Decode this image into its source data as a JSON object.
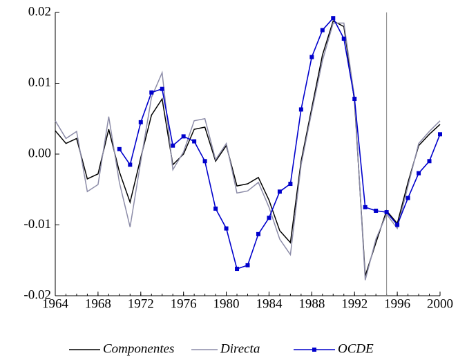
{
  "chart_data": {
    "type": "line",
    "x": [
      1964,
      1965,
      1966,
      1967,
      1968,
      1969,
      1970,
      1971,
      1972,
      1973,
      1974,
      1975,
      1976,
      1977,
      1978,
      1979,
      1980,
      1981,
      1982,
      1983,
      1984,
      1985,
      1986,
      1987,
      1988,
      1989,
      1990,
      1991,
      1992,
      1993,
      1994,
      1995,
      1996,
      1997,
      1998,
      1999,
      2000
    ],
    "xlim": [
      1964,
      2000
    ],
    "xticks": [
      1964,
      1968,
      1972,
      1976,
      1980,
      1984,
      1988,
      1992,
      1996,
      2000
    ],
    "ylim": [
      -0.02,
      0.02
    ],
    "yticks": [
      0.02,
      0.01,
      {
        "value": 0,
        "label": "0.00"
      },
      -0.01,
      -0.02
    ],
    "vline": 1995,
    "series": [
      {
        "name": "Componentes",
        "color": "#000000",
        "markers": false,
        "values": [
          0.0033,
          0.0015,
          0.0022,
          -0.0035,
          -0.0028,
          0.0035,
          -0.0025,
          -0.0068,
          -0.0005,
          0.0055,
          0.0078,
          -0.0015,
          0.0,
          0.0035,
          0.0038,
          -0.001,
          0.0012,
          -0.0045,
          -0.0042,
          -0.0033,
          -0.0065,
          -0.0108,
          -0.0125,
          -0.001,
          0.0065,
          0.014,
          0.0188,
          0.018,
          0.0075,
          -0.0172,
          -0.0125,
          -0.008,
          -0.0098,
          -0.004,
          0.0012,
          0.0028,
          0.0042
        ]
      },
      {
        "name": "Directa",
        "color": "#8c8ca8",
        "markers": false,
        "values": [
          0.0047,
          0.0022,
          0.0032,
          -0.0053,
          -0.0043,
          0.0053,
          -0.004,
          -0.0103,
          -0.001,
          0.008,
          0.0115,
          -0.0022,
          0.0003,
          0.0047,
          0.005,
          -0.0008,
          0.0015,
          -0.0055,
          -0.0052,
          -0.004,
          -0.0075,
          -0.012,
          -0.0142,
          -0.0015,
          0.006,
          0.0132,
          0.0185,
          0.0185,
          0.008,
          -0.0178,
          -0.012,
          -0.0085,
          -0.0105,
          -0.0045,
          0.0015,
          0.0032,
          0.0047
        ]
      },
      {
        "name": "OCDE",
        "color": "#0000cc",
        "markers": true,
        "values": [
          null,
          null,
          null,
          null,
          null,
          null,
          0.0007,
          -0.0015,
          0.0045,
          0.0087,
          0.0092,
          0.0012,
          0.0025,
          0.0018,
          -0.001,
          -0.0077,
          -0.0105,
          -0.0162,
          -0.0157,
          -0.0113,
          -0.009,
          -0.0053,
          -0.0042,
          0.0063,
          0.0137,
          0.0175,
          0.0192,
          0.0163,
          0.0078,
          -0.0075,
          -0.008,
          -0.0082,
          -0.01,
          -0.0062,
          -0.0027,
          -0.001,
          0.0028
        ]
      }
    ]
  }
}
